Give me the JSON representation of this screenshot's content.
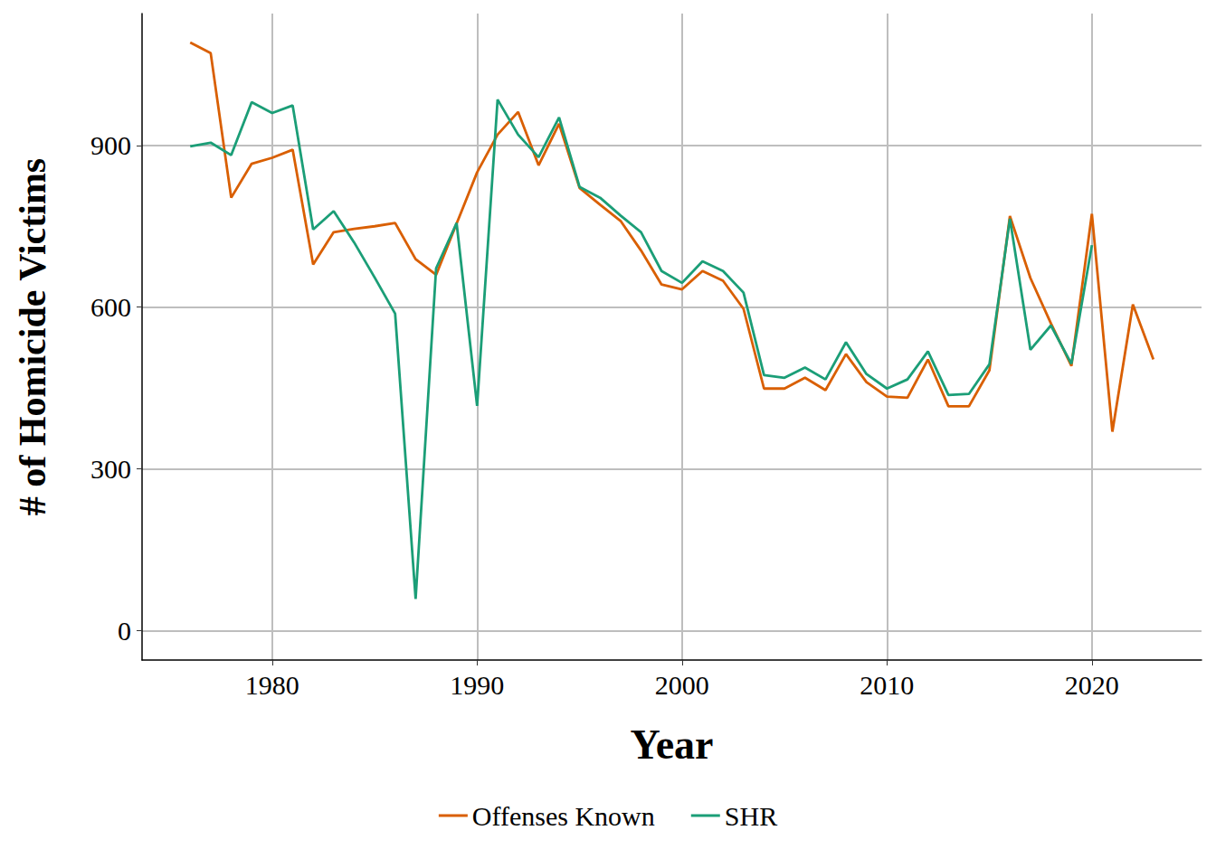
{
  "chart_data": {
    "type": "line",
    "x_label": "Year",
    "y_label": "# of Homicide Victims",
    "x": [
      1976,
      1977,
      1978,
      1979,
      1980,
      1981,
      1982,
      1983,
      1984,
      1985,
      1986,
      1987,
      1988,
      1989,
      1990,
      1991,
      1992,
      1993,
      1994,
      1995,
      1996,
      1997,
      1998,
      1999,
      2000,
      2001,
      2002,
      2003,
      2004,
      2005,
      2006,
      2007,
      2008,
      2009,
      2010,
      2011,
      2012,
      2013,
      2014,
      2015,
      2016,
      2017,
      2018,
      2019,
      2020,
      2021,
      2022,
      2023
    ],
    "series": [
      {
        "name": "Offenses Known",
        "color": "#D95F02",
        "values": [
          1091,
          1071,
          803,
          866,
          877,
          892,
          679,
          739,
          745,
          750,
          756,
          689,
          660,
          755,
          850,
          920,
          962,
          863,
          940,
          821,
          790,
          760,
          705,
          642,
          633,
          667,
          649,
          597,
          449,
          449,
          469,
          446,
          513,
          461,
          434,
          432,
          503,
          416,
          416,
          483,
          769,
          654,
          570,
          491,
          773,
          369,
          605,
          503
        ]
      },
      {
        "name": "SHR",
        "color": "#1B9E77",
        "values": [
          898,
          905,
          882,
          980,
          960,
          974,
          744,
          778,
          720,
          655,
          588,
          59,
          672,
          756,
          417,
          985,
          920,
          878,
          952,
          823,
          803,
          770,
          739,
          667,
          645,
          685,
          667,
          627,
          474,
          469,
          488,
          466,
          535,
          476,
          449,
          466,
          518,
          437,
          439,
          494,
          764,
          521,
          566,
          495,
          715,
          null,
          null,
          null
        ]
      }
    ],
    "xlim": [
      1973.65,
      2025.35
    ],
    "xticks": [
      1980,
      1990,
      2000,
      2010,
      2020
    ],
    "ylim": [
      -54.5,
      1144.5
    ],
    "yticks": [
      0,
      300,
      600,
      900
    ],
    "grid": true,
    "legend": "bottom"
  }
}
